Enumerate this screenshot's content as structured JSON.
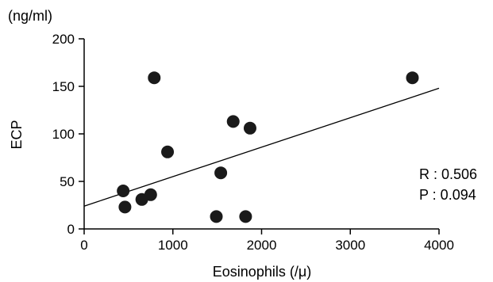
{
  "chart_data": {
    "type": "scatter",
    "unit_label": "(ng/ml)",
    "xlabel": "Eosinophils (/μ)",
    "ylabel": "ECP",
    "xlim": [
      0,
      4000
    ],
    "ylim": [
      0,
      200
    ],
    "xticks": [
      0,
      1000,
      2000,
      3000,
      4000
    ],
    "yticks": [
      0,
      50,
      100,
      150,
      200
    ],
    "grid": false,
    "points": [
      {
        "x": 440,
        "y": 40
      },
      {
        "x": 460,
        "y": 23
      },
      {
        "x": 650,
        "y": 31
      },
      {
        "x": 750,
        "y": 36
      },
      {
        "x": 790,
        "y": 159
      },
      {
        "x": 940,
        "y": 81
      },
      {
        "x": 1490,
        "y": 13
      },
      {
        "x": 1540,
        "y": 59
      },
      {
        "x": 1680,
        "y": 113
      },
      {
        "x": 1820,
        "y": 13
      },
      {
        "x": 1870,
        "y": 106
      },
      {
        "x": 3700,
        "y": 159
      }
    ],
    "regression_line": {
      "x": [
        0,
        4000
      ],
      "y": [
        24,
        148
      ]
    },
    "annotations": [
      "R : 0.506",
      "P : 0.094"
    ],
    "marker_color": "#1a1a1a"
  }
}
